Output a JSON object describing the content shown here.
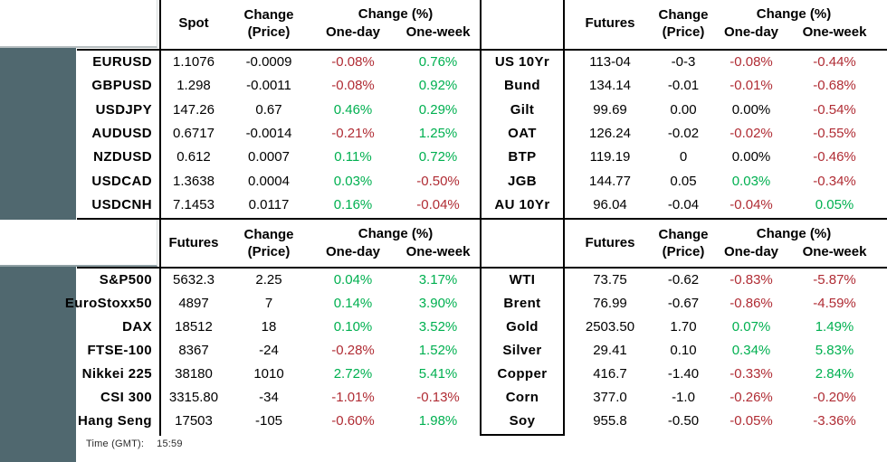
{
  "colors": {
    "positive": "#00b050",
    "negative": "#b02c34",
    "slate_background": "#50686f"
  },
  "time": {
    "label": "Time (GMT):",
    "value": "15:59"
  },
  "tables": {
    "fx": {
      "value_header": "Spot",
      "change_header_line1": "Change",
      "change_header_line2": "(Price)",
      "pct_header": "Change (%)",
      "one_day_header": "One-day",
      "one_week_header": "One-week",
      "rows": [
        {
          "label": "EURUSD",
          "value": "1.1076",
          "change": "-0.0009",
          "one_day": "-0.08%",
          "one_day_dir": "neg",
          "one_week": "0.76%",
          "one_week_dir": "pos"
        },
        {
          "label": "GBPUSD",
          "value": "1.298",
          "change": "-0.0011",
          "one_day": "-0.08%",
          "one_day_dir": "neg",
          "one_week": "0.92%",
          "one_week_dir": "pos"
        },
        {
          "label": "USDJPY",
          "value": "147.26",
          "change": "0.67",
          "one_day": "0.46%",
          "one_day_dir": "pos",
          "one_week": "0.29%",
          "one_week_dir": "pos"
        },
        {
          "label": "AUDUSD",
          "value": "0.6717",
          "change": "-0.0014",
          "one_day": "-0.21%",
          "one_day_dir": "neg",
          "one_week": "1.25%",
          "one_week_dir": "pos"
        },
        {
          "label": "NZDUSD",
          "value": "0.612",
          "change": "0.0007",
          "one_day": "0.11%",
          "one_day_dir": "pos",
          "one_week": "0.72%",
          "one_week_dir": "pos"
        },
        {
          "label": "USDCAD",
          "value": "1.3638",
          "change": "0.0004",
          "one_day": "0.03%",
          "one_day_dir": "pos",
          "one_week": "-0.50%",
          "one_week_dir": "neg"
        },
        {
          "label": "USDCNH",
          "value": "7.1453",
          "change": "0.0117",
          "one_day": "0.16%",
          "one_day_dir": "pos",
          "one_week": "-0.04%",
          "one_week_dir": "neg"
        }
      ]
    },
    "bonds": {
      "value_header": "Futures",
      "change_header_line1": "Change",
      "change_header_line2": "(Price)",
      "pct_header": "Change (%)",
      "one_day_header": "One-day",
      "one_week_header": "One-week",
      "rows": [
        {
          "label": "US 10Yr",
          "value": "113-04",
          "change": "-0-3",
          "one_day": "-0.08%",
          "one_day_dir": "neg",
          "one_week": "-0.44%",
          "one_week_dir": "neg"
        },
        {
          "label": "Bund",
          "value": "134.14",
          "change": "-0.01",
          "one_day": "-0.01%",
          "one_day_dir": "neg",
          "one_week": "-0.68%",
          "one_week_dir": "neg"
        },
        {
          "label": "Gilt",
          "value": "99.69",
          "change": "0.00",
          "one_day": "0.00%",
          "one_day_dir": "flat",
          "one_week": "-0.54%",
          "one_week_dir": "neg"
        },
        {
          "label": "OAT",
          "value": "126.24",
          "change": "-0.02",
          "one_day": "-0.02%",
          "one_day_dir": "neg",
          "one_week": "-0.55%",
          "one_week_dir": "neg"
        },
        {
          "label": "BTP",
          "value": "119.19",
          "change": "0",
          "one_day": "0.00%",
          "one_day_dir": "flat",
          "one_week": "-0.46%",
          "one_week_dir": "neg"
        },
        {
          "label": "JGB",
          "value": "144.77",
          "change": "0.05",
          "one_day": "0.03%",
          "one_day_dir": "pos",
          "one_week": "-0.34%",
          "one_week_dir": "neg"
        },
        {
          "label": "AU 10Yr",
          "value": "96.04",
          "change": "-0.04",
          "one_day": "-0.04%",
          "one_day_dir": "neg",
          "one_week": "0.05%",
          "one_week_dir": "pos"
        }
      ]
    },
    "equities": {
      "value_header": "Futures",
      "change_header_line1": "Change",
      "change_header_line2": "(Price)",
      "pct_header": "Change (%)",
      "one_day_header": "One-day",
      "one_week_header": "One-week",
      "rows": [
        {
          "label": "S&P500",
          "value": "5632.3",
          "change": "2.25",
          "one_day": "0.04%",
          "one_day_dir": "pos",
          "one_week": "3.17%",
          "one_week_dir": "pos"
        },
        {
          "label": "EuroStoxx50",
          "value": "4897",
          "change": "7",
          "one_day": "0.14%",
          "one_day_dir": "pos",
          "one_week": "3.90%",
          "one_week_dir": "pos"
        },
        {
          "label": "DAX",
          "value": "18512",
          "change": "18",
          "one_day": "0.10%",
          "one_day_dir": "pos",
          "one_week": "3.52%",
          "one_week_dir": "pos"
        },
        {
          "label": "FTSE-100",
          "value": "8367",
          "change": "-24",
          "one_day": "-0.28%",
          "one_day_dir": "neg",
          "one_week": "1.52%",
          "one_week_dir": "pos"
        },
        {
          "label": "Nikkei 225",
          "value": "38180",
          "change": "1010",
          "one_day": "2.72%",
          "one_day_dir": "pos",
          "one_week": "5.41%",
          "one_week_dir": "pos"
        },
        {
          "label": "CSI 300",
          "value": "3315.80",
          "change": "-34",
          "one_day": "-1.01%",
          "one_day_dir": "neg",
          "one_week": "-0.13%",
          "one_week_dir": "neg"
        },
        {
          "label": "Hang Seng",
          "value": "17503",
          "change": "-105",
          "one_day": "-0.60%",
          "one_day_dir": "neg",
          "one_week": "1.98%",
          "one_week_dir": "pos"
        }
      ]
    },
    "commodities": {
      "value_header": "Futures",
      "change_header_line1": "Change",
      "change_header_line2": "(Price)",
      "pct_header": "Change (%)",
      "one_day_header": "One-day",
      "one_week_header": "One-week",
      "rows": [
        {
          "label": "WTI",
          "value": "73.75",
          "change": "-0.62",
          "one_day": "-0.83%",
          "one_day_dir": "neg",
          "one_week": "-5.87%",
          "one_week_dir": "neg"
        },
        {
          "label": "Brent",
          "value": "76.99",
          "change": "-0.67",
          "one_day": "-0.86%",
          "one_day_dir": "neg",
          "one_week": "-4.59%",
          "one_week_dir": "neg"
        },
        {
          "label": "Gold",
          "value": "2503.50",
          "change": "1.70",
          "one_day": "0.07%",
          "one_day_dir": "pos",
          "one_week": "1.49%",
          "one_week_dir": "pos"
        },
        {
          "label": "Silver",
          "value": "29.41",
          "change": "0.10",
          "one_day": "0.34%",
          "one_day_dir": "pos",
          "one_week": "5.83%",
          "one_week_dir": "pos"
        },
        {
          "label": "Copper",
          "value": "416.7",
          "change": "-1.40",
          "one_day": "-0.33%",
          "one_day_dir": "neg",
          "one_week": "2.84%",
          "one_week_dir": "pos"
        },
        {
          "label": "Corn",
          "value": "377.0",
          "change": "-1.0",
          "one_day": "-0.26%",
          "one_day_dir": "neg",
          "one_week": "-0.20%",
          "one_week_dir": "neg"
        },
        {
          "label": "Soy",
          "value": "955.8",
          "change": "-0.50",
          "one_day": "-0.05%",
          "one_day_dir": "neg",
          "one_week": "-3.36%",
          "one_week_dir": "neg"
        }
      ]
    }
  }
}
